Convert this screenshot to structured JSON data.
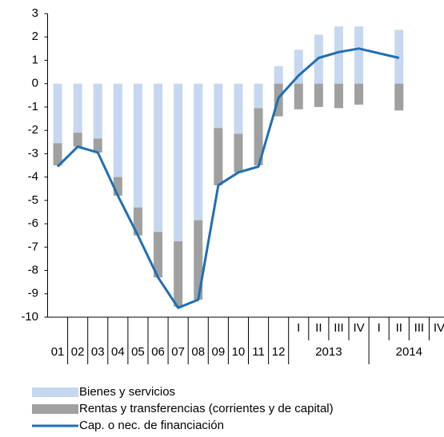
{
  "chart_data": {
    "type": "stacked-bar-line",
    "categories": [
      "01",
      "02",
      "03",
      "04",
      "05",
      "06",
      "07",
      "08",
      "09",
      "10",
      "11",
      "12",
      "I",
      "II",
      "III",
      "IV",
      "I",
      "II",
      "III",
      "IV"
    ],
    "category_groups": [
      {
        "label": "2013",
        "span": 4
      },
      {
        "label": "2014",
        "span": 4
      }
    ],
    "series": [
      {
        "name": "Bienes y servicios",
        "kind": "bar",
        "color": "#c6d8ef",
        "values": [
          -2.55,
          -2.1,
          -2.35,
          -4.0,
          -5.3,
          -6.35,
          -6.75,
          -5.85,
          -1.9,
          -2.15,
          -1.05,
          0.75,
          1.45,
          2.1,
          2.45,
          2.45,
          null,
          2.3,
          null,
          null
        ]
      },
      {
        "name": "Rentas y transferencias (corrientes y de capital)",
        "kind": "bar",
        "color": "#a0a0a0",
        "values": [
          -0.95,
          -0.6,
          -0.6,
          -0.8,
          -1.2,
          -1.95,
          -2.8,
          -3.4,
          -2.45,
          -1.65,
          -2.45,
          -1.4,
          -1.1,
          -1.0,
          -1.05,
          -0.9,
          null,
          -1.15,
          null,
          null
        ]
      },
      {
        "name": "Cap. o nec. de financiación",
        "kind": "line",
        "color": "#1f6fb4",
        "values": [
          -3.55,
          -2.7,
          -2.95,
          -4.8,
          -6.5,
          -8.3,
          -9.6,
          -9.25,
          -4.35,
          -3.8,
          -3.55,
          -0.6,
          0.35,
          1.1,
          1.35,
          1.5,
          null,
          1.1,
          null,
          null
        ]
      }
    ],
    "ylim": [
      -10,
      3
    ],
    "yticks": [
      -10,
      -9,
      -8,
      -7,
      -6,
      -5,
      -4,
      -3,
      -2,
      -1,
      0,
      1,
      2,
      3
    ]
  }
}
